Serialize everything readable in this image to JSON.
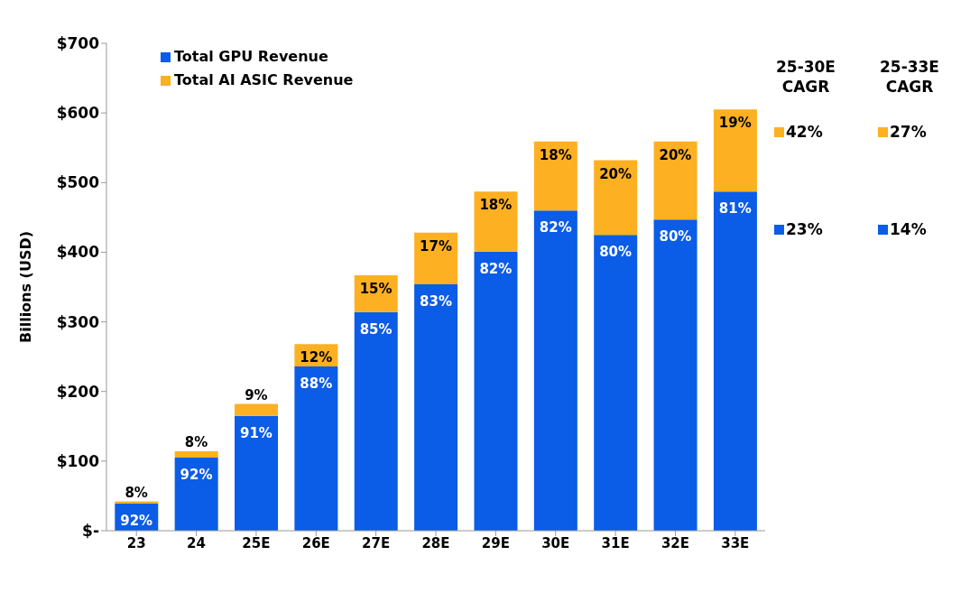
{
  "chart_data": {
    "type": "bar",
    "stacked": true,
    "ylabel": "Billions (USD)",
    "categories": [
      "23",
      "24",
      "25E",
      "26E",
      "27E",
      "28E",
      "29E",
      "30E",
      "31E",
      "32E",
      "33E"
    ],
    "series": [
      {
        "name": "Total GPU Revenue",
        "color": "#0b5ce6",
        "values": [
          39,
          105,
          165,
          236,
          314,
          354,
          401,
          460,
          425,
          447,
          487
        ]
      },
      {
        "name": "Total AI ASIC Revenue",
        "color": "#fdb022",
        "values": [
          3,
          9,
          17,
          32,
          53,
          74,
          86,
          99,
          107,
          112,
          118
        ]
      }
    ],
    "ylim": [
      0,
      700
    ],
    "yticks": [
      {
        "value": 0,
        "label": "$-"
      },
      {
        "value": 100,
        "label": "$100"
      },
      {
        "value": 200,
        "label": "$200"
      },
      {
        "value": 300,
        "label": "$300"
      },
      {
        "value": 400,
        "label": "$400"
      },
      {
        "value": 500,
        "label": "$500"
      },
      {
        "value": 600,
        "label": "$600"
      },
      {
        "value": 700,
        "label": "$700"
      }
    ],
    "grid": false,
    "legend": "top left",
    "annotations": [
      "25-30E CAGR",
      "25-33E CAGR",
      "42%",
      "27%",
      "23%",
      "14%",
      {
        "text": "92%",
        "x": "23",
        "y": 39
      },
      {
        "text": "92%",
        "x": "24",
        "y": 105
      },
      {
        "text": "91%",
        "x": "25E",
        "y": 165
      },
      {
        "text": "88%",
        "x": "26E",
        "y": 236
      },
      {
        "text": "85%",
        "x": "27E",
        "y": 314
      },
      {
        "text": "83%",
        "x": "28E",
        "y": 354
      },
      {
        "text": "82%",
        "x": "29E",
        "y": 401
      },
      {
        "text": "82%",
        "x": "30E",
        "y": 460
      },
      {
        "text": "80%",
        "x": "31E",
        "y": 425
      },
      {
        "text": "80%",
        "x": "32E",
        "y": 447
      },
      {
        "text": "81%",
        "x": "33E",
        "y": 487
      },
      {
        "text": "8%",
        "x": "23",
        "y": 42
      },
      {
        "text": "8%",
        "x": "24",
        "y": 114
      },
      {
        "text": "9%",
        "x": "25E",
        "y": 182
      },
      {
        "text": "12%",
        "x": "26E",
        "y": 268
      },
      {
        "text": "15%",
        "x": "27E",
        "y": 367
      },
      {
        "text": "17%",
        "x": "28E",
        "y": 428
      },
      {
        "text": "18%",
        "x": "29E",
        "y": 487
      },
      {
        "text": "18%",
        "x": "30E",
        "y": 559
      },
      {
        "text": "20%",
        "x": "31E",
        "y": 532
      },
      {
        "text": "20%",
        "x": "32E",
        "y": 559
      },
      {
        "text": "19%",
        "x": "33E",
        "y": 605
      }
    ]
  }
}
